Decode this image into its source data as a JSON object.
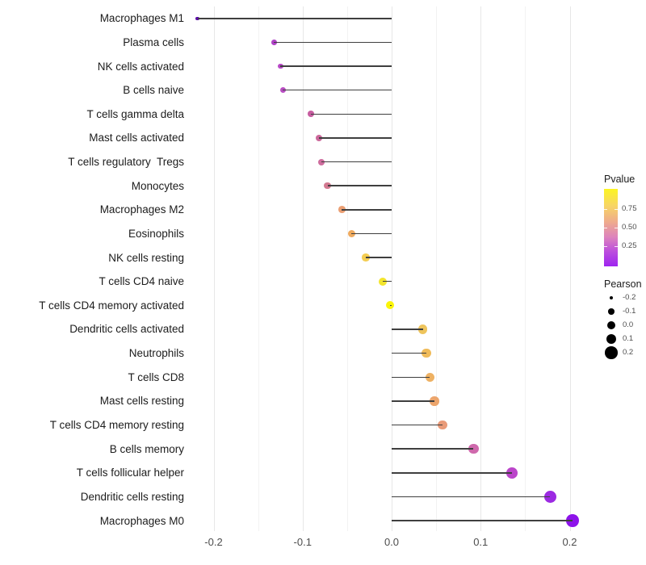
{
  "chart_data": {
    "type": "scatter",
    "subtype": "lollipop",
    "title": "",
    "xlabel": "",
    "ylabel": "",
    "xlim": [
      -0.245,
      0.222
    ],
    "grid": true,
    "x_ticks": [
      {
        "value": -0.2,
        "label": "-0.2"
      },
      {
        "value": -0.1,
        "label": "-0.1"
      },
      {
        "value": 0.0,
        "label": "0.0"
      },
      {
        "value": 0.1,
        "label": "0.1"
      },
      {
        "value": 0.2,
        "label": "0.2"
      }
    ],
    "grid_minor": [
      -0.15,
      -0.05,
      0.05,
      0.15
    ],
    "rows": [
      {
        "label": "Macrophages M1",
        "pearson": -0.218,
        "color": "#5b0ba8"
      },
      {
        "label": "Plasma cells",
        "pearson": -0.132,
        "color": "#b043c7"
      },
      {
        "label": "NK cells activated",
        "pearson": -0.125,
        "color": "#b748c6"
      },
      {
        "label": "B cells naive",
        "pearson": -0.122,
        "color": "#b94ec3"
      },
      {
        "label": "T cells gamma delta",
        "pearson": -0.091,
        "color": "#c75da0"
      },
      {
        "label": "Mast cells activated",
        "pearson": -0.082,
        "color": "#cc689b"
      },
      {
        "label": "T cells regulatory  Tregs",
        "pearson": -0.079,
        "color": "#ce6c9d"
      },
      {
        "label": "Monocytes",
        "pearson": -0.072,
        "color": "#d37a91"
      },
      {
        "label": "Macrophages M2",
        "pearson": -0.056,
        "color": "#eb9f73"
      },
      {
        "label": "Eosinophils",
        "pearson": -0.045,
        "color": "#f0ab5f"
      },
      {
        "label": "NK cells resting",
        "pearson": -0.029,
        "color": "#f4cd52"
      },
      {
        "label": "T cells CD4 naive",
        "pearson": -0.01,
        "color": "#f3e52c"
      },
      {
        "label": "T cells CD4 memory activated",
        "pearson": -0.002,
        "color": "#fbf508"
      },
      {
        "label": "Dendritic cells activated",
        "pearson": 0.035,
        "color": "#eec45c"
      },
      {
        "label": "Neutrophils",
        "pearson": 0.039,
        "color": "#f0bb59"
      },
      {
        "label": "T cells CD8",
        "pearson": 0.043,
        "color": "#eeb163"
      },
      {
        "label": "Mast cells resting",
        "pearson": 0.048,
        "color": "#eca56c"
      },
      {
        "label": "T cells CD4 memory resting",
        "pearson": 0.057,
        "color": "#e99b79"
      },
      {
        "label": "B cells memory",
        "pearson": 0.092,
        "color": "#cf69ac"
      },
      {
        "label": "T cells follicular helper",
        "pearson": 0.135,
        "color": "#bb45ca"
      },
      {
        "label": "Dendritic cells resting",
        "pearson": 0.178,
        "color": "#9c2ae2"
      },
      {
        "label": "Macrophages M0",
        "pearson": 0.203,
        "color": "#8d13ea"
      }
    ]
  },
  "legends": {
    "pvalue": {
      "title": "Pvalue",
      "ticks": [
        {
          "label": "0.75",
          "pos": 0.26
        },
        {
          "label": "0.50",
          "pos": 0.5
        },
        {
          "label": "0.25",
          "pos": 0.74
        }
      ],
      "gradient_top_to_bottom": [
        "#fcf523",
        "#f7d566",
        "#efac8b",
        "#dd84bc",
        "#bd50dc",
        "#9e24f0"
      ]
    },
    "pearson": {
      "title": "Pearson",
      "entries": [
        {
          "label": "-0.2",
          "value": -0.2
        },
        {
          "label": "-0.1",
          "value": -0.1
        },
        {
          "label": "0.0",
          "value": 0.0
        },
        {
          "label": "0.1",
          "value": 0.1
        },
        {
          "label": "0.2",
          "value": 0.2
        }
      ]
    }
  }
}
